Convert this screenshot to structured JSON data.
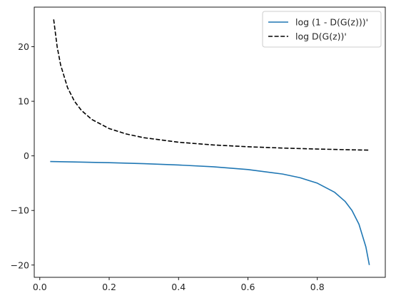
{
  "chart_data": {
    "type": "line",
    "title": "",
    "xlabel": "",
    "ylabel": "",
    "xlim": [
      -0.016,
      0.996
    ],
    "ylim": [
      -22.25,
      27.25
    ],
    "xticks": [
      0.0,
      0.2,
      0.4,
      0.6,
      0.8
    ],
    "xtick_labels": [
      "0.0",
      "0.2",
      "0.4",
      "0.6",
      "0.8"
    ],
    "yticks": [
      -20,
      -10,
      0,
      10,
      20
    ],
    "ytick_labels": [
      "−20",
      "−10",
      "0",
      "10",
      "20"
    ],
    "grid": false,
    "legend_position": "top-right",
    "series": [
      {
        "name": "log (1 - D(G(z)))'",
        "color": "#1f77b4",
        "dash": "solid",
        "x": [
          0.03,
          0.1,
          0.2,
          0.3,
          0.4,
          0.5,
          0.6,
          0.7,
          0.75,
          0.8,
          0.85,
          0.88,
          0.9,
          0.92,
          0.94,
          0.95
        ],
        "y": [
          -1.03,
          -1.11,
          -1.25,
          -1.43,
          -1.67,
          -2.0,
          -2.5,
          -3.33,
          -4.0,
          -5.0,
          -6.67,
          -8.33,
          -10.0,
          -12.5,
          -16.67,
          -20.0
        ]
      },
      {
        "name": "log D(G(z))'",
        "color": "#000000",
        "dash": "dashed",
        "x": [
          0.04,
          0.05,
          0.06,
          0.08,
          0.1,
          0.12,
          0.15,
          0.2,
          0.25,
          0.3,
          0.4,
          0.5,
          0.6,
          0.7,
          0.8,
          0.9,
          0.95
        ],
        "y": [
          25.0,
          20.0,
          16.67,
          12.5,
          10.0,
          8.33,
          6.67,
          5.0,
          4.0,
          3.33,
          2.5,
          2.0,
          1.67,
          1.43,
          1.25,
          1.11,
          1.05
        ]
      }
    ]
  }
}
